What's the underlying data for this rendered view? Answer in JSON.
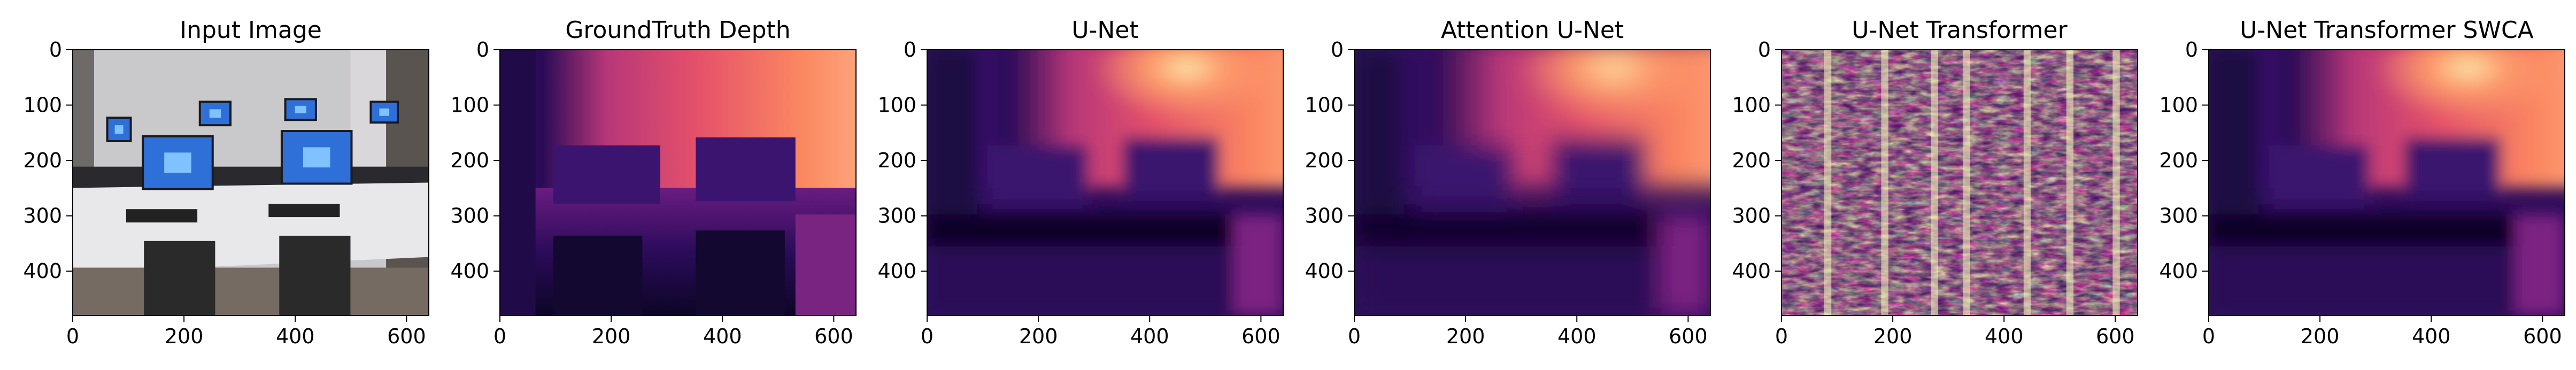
{
  "panels": [
    {
      "title": "Input Image",
      "kind": "rgb"
    },
    {
      "title": "GroundTruth Depth",
      "kind": "gt"
    },
    {
      "title": "U-Net",
      "kind": "unet"
    },
    {
      "title": "Attention U-Net",
      "kind": "attn"
    },
    {
      "title": "U-Net Transformer",
      "kind": "noise"
    },
    {
      "title": "U-Net Transformer SWCA",
      "kind": "swca"
    }
  ],
  "axes": {
    "x_ticks": [
      "0",
      "200",
      "400",
      "600"
    ],
    "y_ticks": [
      "0",
      "100",
      "200",
      "300",
      "400"
    ]
  },
  "colormap": "magma"
}
